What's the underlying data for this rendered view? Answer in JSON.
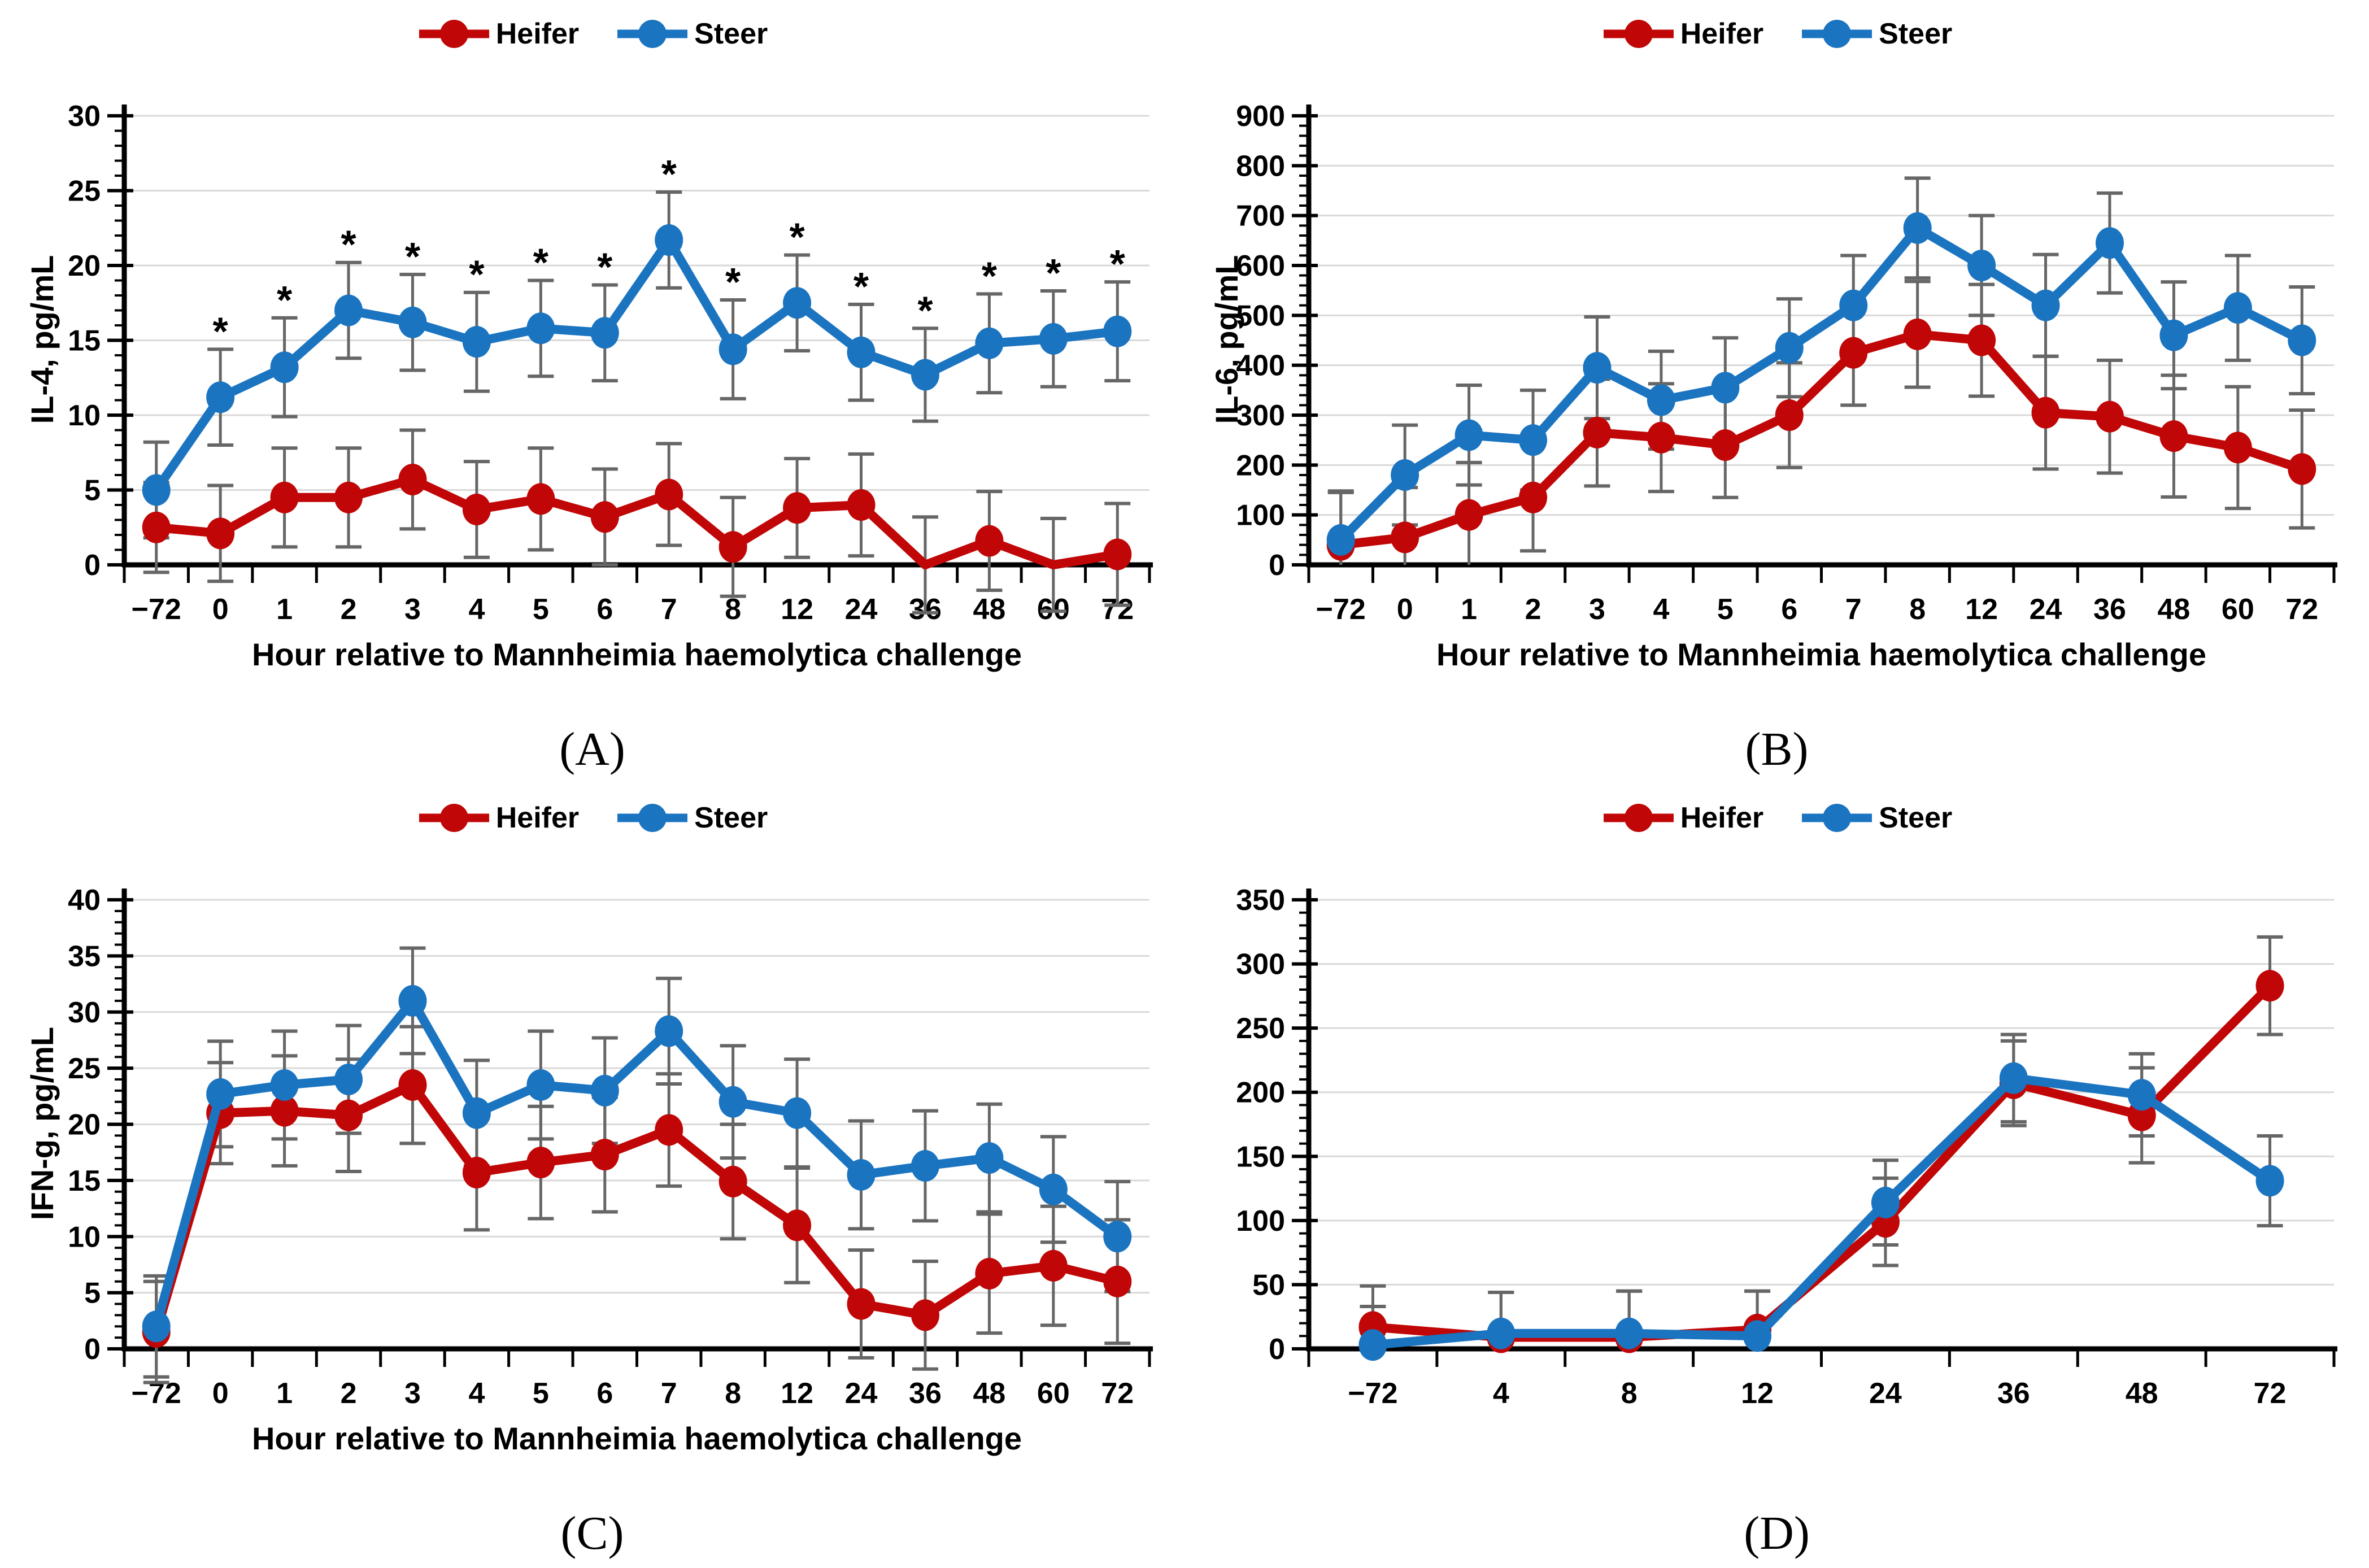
{
  "legend": {
    "heifer": "Heifer",
    "steer": "Steer"
  },
  "colors": {
    "heifer": "#C00606",
    "steer": "#1B74C0",
    "error_bar": "#666666",
    "gridline": "#D9D9D9",
    "axis": "#000000",
    "text": "#000000"
  },
  "chart_data": [
    {
      "panel": "A",
      "type": "line",
      "caption": "(A)",
      "ylabel": "IL-4, pg/mL",
      "xlabel": "Hour relative to Mannheimia haemolytica challenge",
      "categories": [
        "−72",
        "0",
        "1",
        "2",
        "3",
        "4",
        "5",
        "6",
        "7",
        "8",
        "12",
        "24",
        "36",
        "48",
        "60",
        "72"
      ],
      "ylim": [
        0,
        30
      ],
      "ytick": 5,
      "yminor": 1,
      "grid": true,
      "clip_err_at_zero": false,
      "legend_position": "top-center",
      "series": [
        {
          "name": "Heifer",
          "color_key": "heifer",
          "values": [
            2.5,
            2.1,
            4.5,
            4.5,
            5.7,
            3.7,
            4.4,
            3.2,
            4.7,
            1.2,
            3.8,
            4.0,
            0,
            1.6,
            0,
            0.7
          ],
          "err": [
            3.0,
            3.2,
            3.3,
            3.3,
            3.3,
            3.2,
            3.4,
            3.2,
            3.4,
            3.3,
            3.3,
            3.4,
            3.2,
            3.3,
            3.1,
            3.4
          ]
        },
        {
          "name": "Steer",
          "color_key": "steer",
          "values": [
            5.0,
            11.2,
            13.2,
            17.0,
            16.2,
            14.9,
            15.8,
            15.5,
            21.7,
            14.4,
            17.5,
            14.2,
            12.7,
            14.8,
            15.1,
            15.6
          ],
          "err": [
            3.2,
            3.2,
            3.3,
            3.2,
            3.2,
            3.3,
            3.2,
            3.2,
            3.2,
            3.3,
            3.2,
            3.2,
            3.1,
            3.3,
            3.2,
            3.3
          ],
          "sig": [
            false,
            true,
            true,
            true,
            true,
            true,
            true,
            true,
            true,
            true,
            true,
            true,
            true,
            true,
            true,
            true
          ]
        }
      ],
      "sig_symbol": "*"
    },
    {
      "panel": "B",
      "type": "line",
      "caption": "(B)",
      "ylabel": "IL-6, pg/mL",
      "xlabel": "Hour relative to Mannheimia haemolytica challenge",
      "categories": [
        "−72",
        "0",
        "1",
        "2",
        "3",
        "4",
        "5",
        "6",
        "7",
        "8",
        "12",
        "24",
        "36",
        "48",
        "60",
        "72"
      ],
      "ylim": [
        0,
        900
      ],
      "ytick": 100,
      "yminor": 20,
      "grid": true,
      "clip_err_at_zero": true,
      "legend_position": "top-center",
      "series": [
        {
          "name": "Heifer",
          "color_key": "heifer",
          "values": [
            40,
            55,
            100,
            135,
            265,
            255,
            240,
            300,
            425,
            462,
            450,
            305,
            297,
            258,
            235,
            192
          ],
          "err": [
            105,
            100,
            105,
            107,
            107,
            108,
            105,
            105,
            105,
            106,
            112,
            113,
            113,
            122,
            122,
            118
          ]
        },
        {
          "name": "Steer",
          "color_key": "steer",
          "values": [
            50,
            180,
            260,
            250,
            395,
            330,
            355,
            435,
            520,
            675,
            600,
            520,
            645,
            460,
            515,
            450
          ],
          "err": [
            98,
            100,
            100,
            100,
            102,
            98,
            100,
            98,
            100,
            100,
            100,
            102,
            100,
            107,
            105,
            107
          ]
        }
      ],
      "sig_symbol": "*"
    },
    {
      "panel": "C",
      "type": "line",
      "caption": "(C)",
      "ylabel": "IFN-g, pg/mL",
      "xlabel": "Hour relative to Mannheimia haemolytica challenge",
      "categories": [
        "−72",
        "0",
        "1",
        "2",
        "3",
        "4",
        "5",
        "6",
        "7",
        "8",
        "12",
        "24",
        "36",
        "48",
        "60",
        "72"
      ],
      "ylim": [
        0,
        40
      ],
      "ytick": 5,
      "yminor": 1,
      "grid": true,
      "clip_err_at_zero": false,
      "legend_position": "top-center",
      "series": [
        {
          "name": "Heifer",
          "color_key": "heifer",
          "values": [
            1.5,
            21.0,
            21.2,
            20.8,
            23.5,
            15.7,
            16.6,
            17.3,
            19.5,
            14.9,
            11.0,
            4.0,
            3.0,
            6.7,
            7.4,
            6.0
          ],
          "err": [
            4.5,
            4.5,
            4.9,
            5.0,
            5.2,
            5.1,
            5.0,
            5.1,
            5.0,
            5.1,
            5.1,
            4.8,
            4.8,
            5.3,
            5.3,
            5.5
          ]
        },
        {
          "name": "Steer",
          "color_key": "steer",
          "values": [
            2.0,
            22.7,
            23.5,
            24.0,
            31.0,
            21.0,
            23.5,
            23.0,
            28.3,
            22.0,
            21.0,
            15.5,
            16.3,
            17.0,
            14.2,
            10.0
          ],
          "err": [
            4.5,
            4.7,
            4.8,
            4.8,
            4.7,
            4.7,
            4.8,
            4.7,
            4.7,
            5.0,
            4.8,
            4.8,
            4.9,
            4.8,
            4.7,
            4.9
          ]
        }
      ],
      "sig_symbol": "*"
    },
    {
      "panel": "D",
      "type": "line",
      "caption": "(D)",
      "ylabel": "",
      "xlabel": "",
      "categories": [
        "−72",
        "4",
        "8",
        "12",
        "24",
        "36",
        "48",
        "72"
      ],
      "ylim": [
        0,
        350
      ],
      "ytick": 50,
      "yminor": 10,
      "grid": true,
      "clip_err_at_zero": true,
      "legend_position": "top-center",
      "series": [
        {
          "name": "Heifer",
          "color_key": "heifer",
          "values": [
            17,
            9,
            9,
            15,
            99,
            207,
            182,
            283
          ],
          "err": [
            32,
            35,
            36,
            30,
            34,
            33,
            37,
            38
          ]
        },
        {
          "name": "Steer",
          "color_key": "steer",
          "values": [
            3,
            12,
            12,
            10,
            114,
            211,
            198,
            131
          ],
          "err": [
            30,
            32,
            33,
            35,
            33,
            34,
            32,
            35
          ]
        }
      ],
      "sig_symbol": "*"
    }
  ]
}
